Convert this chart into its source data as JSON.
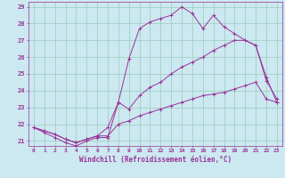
{
  "xlabel": "Windchill (Refroidissement éolien,°C)",
  "bg_color": "#cce8f0",
  "grid_color": "#99ccbb",
  "line_color": "#993399",
  "xlim": [
    -0.5,
    23.5
  ],
  "ylim": [
    20.7,
    29.3
  ],
  "xticks": [
    0,
    1,
    2,
    3,
    4,
    5,
    6,
    7,
    8,
    9,
    10,
    11,
    12,
    13,
    14,
    15,
    16,
    17,
    18,
    19,
    20,
    21,
    22,
    23
  ],
  "yticks": [
    21,
    22,
    23,
    24,
    25,
    26,
    27,
    28,
    29
  ],
  "lines": [
    {
      "x": [
        0,
        1,
        2,
        3,
        4,
        5,
        6,
        7,
        8,
        9,
        10,
        11,
        12,
        13,
        14,
        15,
        16,
        17,
        18,
        19,
        20,
        21,
        22,
        23
      ],
      "y": [
        21.8,
        21.6,
        21.4,
        21.1,
        20.9,
        21.1,
        21.3,
        21.3,
        22.0,
        22.2,
        22.5,
        22.7,
        22.9,
        23.1,
        23.3,
        23.5,
        23.7,
        23.8,
        23.9,
        24.1,
        24.3,
        24.5,
        23.5,
        23.3
      ]
    },
    {
      "x": [
        0,
        1,
        2,
        3,
        4,
        5,
        6,
        7,
        8,
        9,
        10,
        11,
        12,
        13,
        14,
        15,
        16,
        17,
        18,
        19,
        20,
        21,
        22,
        23
      ],
      "y": [
        21.8,
        21.5,
        21.2,
        20.9,
        20.7,
        21.0,
        21.2,
        21.2,
        23.3,
        25.9,
        27.7,
        28.1,
        28.3,
        28.5,
        29.0,
        28.6,
        27.7,
        28.5,
        27.8,
        27.4,
        27.0,
        26.7,
        24.8,
        23.3
      ]
    },
    {
      "x": [
        0,
        1,
        2,
        3,
        4,
        5,
        6,
        7,
        8,
        9,
        10,
        11,
        12,
        13,
        14,
        15,
        16,
        17,
        18,
        19,
        20,
        21,
        22,
        23
      ],
      "y": [
        21.8,
        21.6,
        21.4,
        21.1,
        20.9,
        21.1,
        21.3,
        21.8,
        23.3,
        22.9,
        23.7,
        24.2,
        24.5,
        25.0,
        25.4,
        25.7,
        26.0,
        26.4,
        26.7,
        27.0,
        27.0,
        26.7,
        24.6,
        23.5
      ]
    }
  ]
}
